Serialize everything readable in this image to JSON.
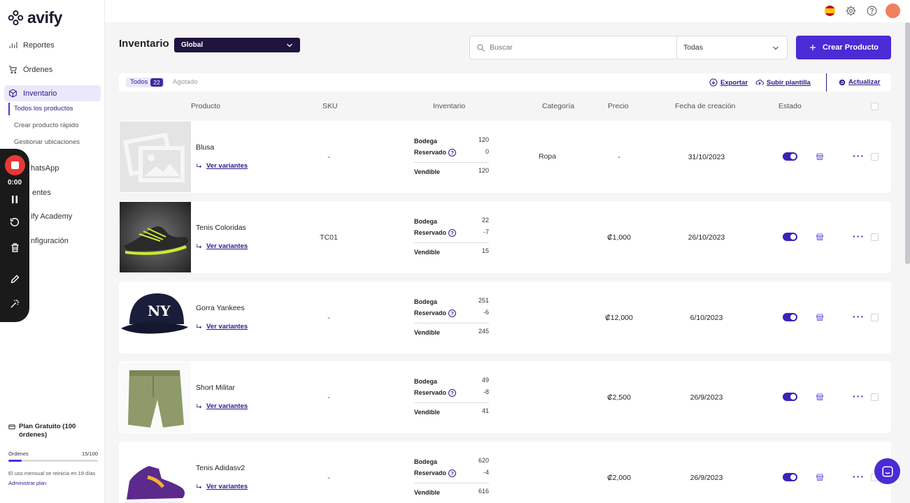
{
  "app": {
    "logo": "avify"
  },
  "sidebar": {
    "items": [
      {
        "label": "Reportes",
        "icon": "bar-chart-icon"
      },
      {
        "label": "Órdenes",
        "icon": "cart-icon"
      },
      {
        "label": "Inventario",
        "icon": "box-icon"
      }
    ],
    "subitems": [
      "Todos los productos",
      "Crear producto rápido",
      "Gestionar ubicaciones"
    ],
    "hidden_items": [
      "WhatsApp",
      "Clientes",
      "Avify Academy",
      "Configuración"
    ],
    "hidden_items_visible": [
      "hatsApp",
      "entes",
      "ify Academy",
      "nfiguración"
    ]
  },
  "plan": {
    "title": "Plan Gratuito (100 órdenes)",
    "orders_label": "Órdenes",
    "orders_count": "15/100",
    "orders_fraction": 0.15,
    "note": "El uso mensual se reinicia en 19 días",
    "link": "Administrar plan"
  },
  "recorder": {
    "time": "0:00"
  },
  "header": {
    "title": "Inventario",
    "scope": "Global",
    "search_placeholder": "Buscar",
    "filter": "Todas",
    "create_label": "Crear Producto"
  },
  "tabs": {
    "all_label": "Todos",
    "all_count": "22",
    "out_label": "Agotado",
    "export": "Exportar",
    "upload": "Subir plantilla",
    "refresh": "Actualizar"
  },
  "table": {
    "columns": [
      "Producto",
      "SKU",
      "Inventario",
      "Categoría",
      "Precio",
      "Fecha de creación",
      "Estado"
    ],
    "inv_labels": {
      "stock": "Bodega",
      "reserved": "Reservado",
      "sellable": "Vendible"
    },
    "variants_label": "Ver variantes",
    "rows": [
      {
        "name": "Blusa",
        "sku": "-",
        "stock": "120",
        "reserved": "0",
        "sellable": "120",
        "category": "Ropa",
        "price": "-",
        "date": "31/10/2023",
        "image": "placeholder-image-icon"
      },
      {
        "name": "Tenis Coloridas",
        "sku": "TC01",
        "stock": "22",
        "reserved": "-7",
        "sellable": "15",
        "category": "",
        "price": "₡1,000",
        "date": "26/10/2023",
        "image": "sneaker-image"
      },
      {
        "name": "Gorra Yankees",
        "sku": "-",
        "stock": "251",
        "reserved": "-6",
        "sellable": "245",
        "category": "",
        "price": "₡12,000",
        "date": "6/10/2023",
        "image": "cap-image"
      },
      {
        "name": "Short Militar",
        "sku": "-",
        "stock": "49",
        "reserved": "-8",
        "sellable": "41",
        "category": "",
        "price": "₡2,500",
        "date": "26/9/2023",
        "image": "shorts-image"
      },
      {
        "name": "Tenis Adidasv2",
        "sku": "-",
        "stock": "620",
        "reserved": "-4",
        "sellable": "616",
        "category": "",
        "price": "₡2,000",
        "date": "26/9/2023",
        "image": "high-top-sneaker-image"
      }
    ]
  },
  "colors": {
    "accent": "#4b2bd6",
    "dark": "#1f1440",
    "link": "#2b1b8c"
  }
}
